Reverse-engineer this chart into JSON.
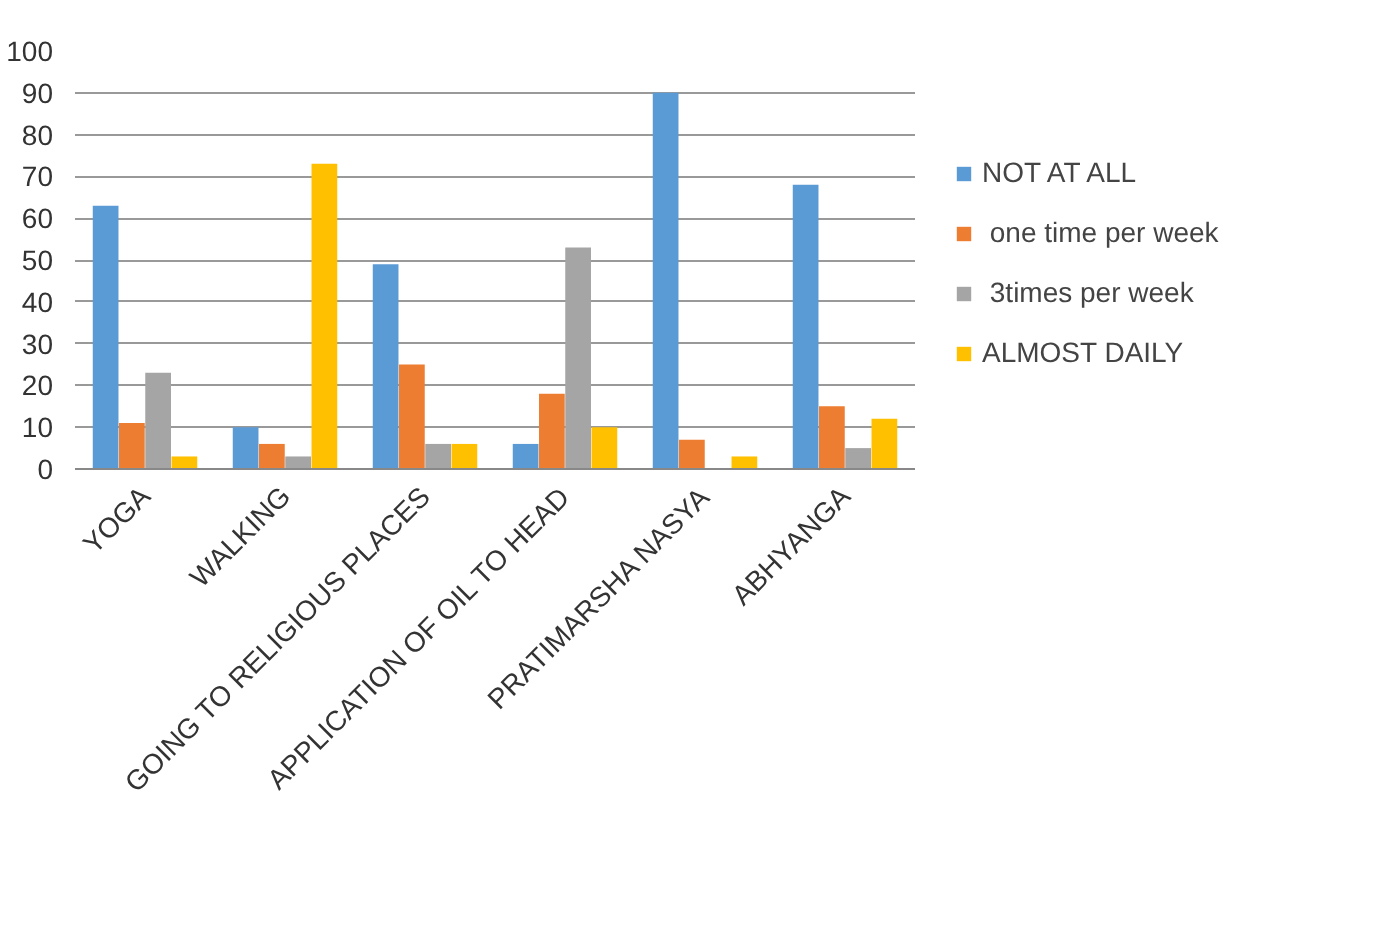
{
  "chart_data": {
    "type": "bar",
    "categories": [
      "YOGA",
      "WALKING",
      "GOING TO RELIGIOUS PLACES",
      "APPLICATION OF OIL TO HEAD",
      "PRATIMARSHA NASYA",
      "ABHYANGA"
    ],
    "series": [
      {
        "name": "NOT AT ALL",
        "color": "#5b9bd5",
        "values": [
          63,
          10,
          49,
          6,
          90,
          68
        ]
      },
      {
        "name": " one time per week",
        "color": "#ed7d31",
        "values": [
          11,
          6,
          25,
          18,
          7,
          15
        ]
      },
      {
        "name": " 3times per week",
        "color": "#a5a5a5",
        "values": [
          23,
          3,
          6,
          53,
          null,
          5
        ]
      },
      {
        "name": "ALMOST DAILY",
        "color": "#ffc000",
        "values": [
          3,
          73,
          6,
          10,
          3,
          12
        ]
      }
    ],
    "ylim": [
      0,
      100
    ],
    "yticks": [
      0,
      10,
      20,
      30,
      40,
      50,
      60,
      70,
      80,
      90,
      100
    ],
    "grid": "y",
    "legend": "right"
  }
}
